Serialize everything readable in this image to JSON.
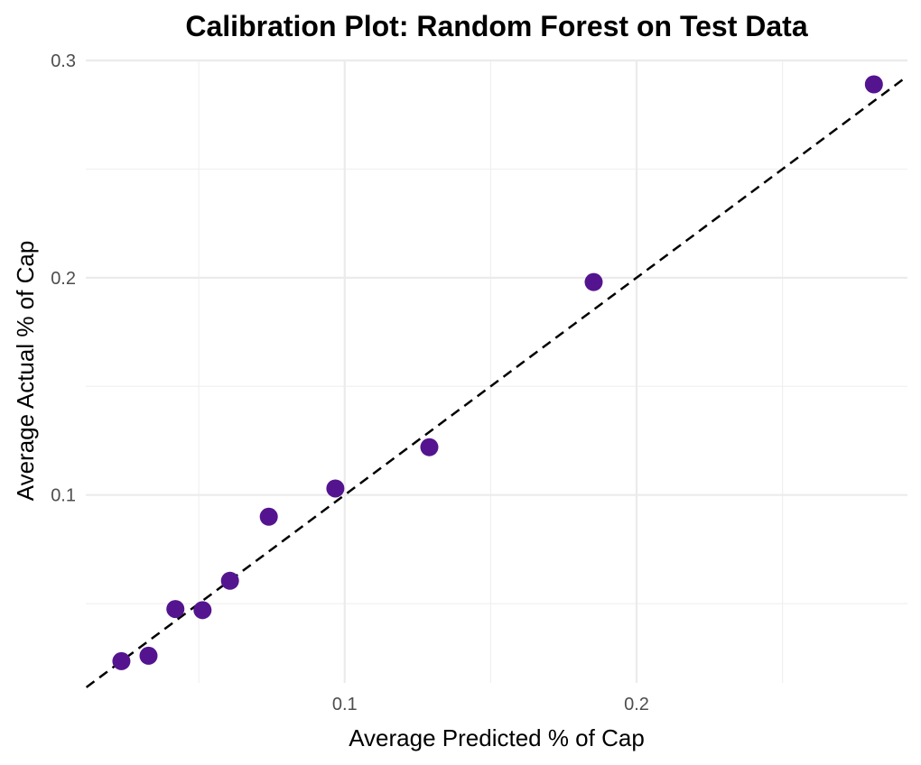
{
  "chart_data": {
    "type": "scatter",
    "title": "Calibration Plot: Random Forest on Test Data",
    "xlabel": "Average Predicted % of Cap",
    "ylabel": "Average Actual % of Cap",
    "xlim": [
      0.0113,
      0.2928
    ],
    "ylim": [
      0.0135,
      0.3
    ],
    "x_ticks": [
      0.1,
      0.2
    ],
    "x_tick_labels": [
      "0.1",
      "0.2"
    ],
    "x_minor_ticks": [
      0.05,
      0.15,
      0.25
    ],
    "y_ticks": [
      0.1,
      0.2,
      0.3
    ],
    "y_tick_labels": [
      "0.1",
      "0.2",
      "0.3"
    ],
    "y_minor_ticks": [
      0.05,
      0.15,
      0.25
    ],
    "grid": true,
    "reference_line": "y = x (dashed)",
    "point_color": "#55148f",
    "points": [
      {
        "x": 0.0235,
        "y": 0.0235
      },
      {
        "x": 0.0328,
        "y": 0.026
      },
      {
        "x": 0.042,
        "y": 0.0475
      },
      {
        "x": 0.0513,
        "y": 0.047
      },
      {
        "x": 0.0607,
        "y": 0.0605
      },
      {
        "x": 0.074,
        "y": 0.09
      },
      {
        "x": 0.0968,
        "y": 0.103
      },
      {
        "x": 0.129,
        "y": 0.122
      },
      {
        "x": 0.1853,
        "y": 0.198
      },
      {
        "x": 0.2813,
        "y": 0.289
      }
    ]
  }
}
